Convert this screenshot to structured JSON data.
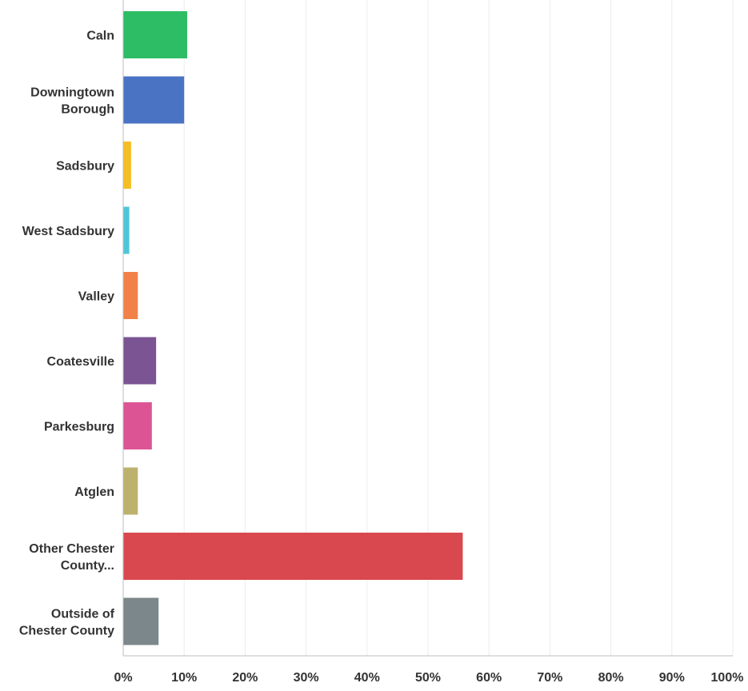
{
  "chart_data": {
    "type": "bar",
    "orientation": "horizontal",
    "categories": [
      [
        "Caln"
      ],
      [
        "Downingtown",
        "Borough"
      ],
      [
        "Sadsbury"
      ],
      [
        "West Sadsbury"
      ],
      [
        "Valley"
      ],
      [
        "Coatesville"
      ],
      [
        "Parkesburg"
      ],
      [
        "Atglen"
      ],
      [
        "Other Chester",
        "County..."
      ],
      [
        "Outside of",
        "Chester County"
      ]
    ],
    "values": [
      10.5,
      10,
      1.3,
      1,
      2.4,
      5.4,
      4.7,
      2.4,
      55.7,
      5.8
    ],
    "colors": [
      "#2dbd64",
      "#4a73c4",
      "#f6be26",
      "#4fc6d8",
      "#f28149",
      "#7b5494",
      "#dc5493",
      "#bdb26d",
      "#d9484e",
      "#7b878a"
    ],
    "x_ticks": [
      "0%",
      "10%",
      "20%",
      "30%",
      "40%",
      "50%",
      "60%",
      "70%",
      "80%",
      "90%",
      "100%"
    ],
    "xlim": [
      0,
      100
    ],
    "grid": true,
    "title": "",
    "xlabel": "",
    "ylabel": ""
  }
}
